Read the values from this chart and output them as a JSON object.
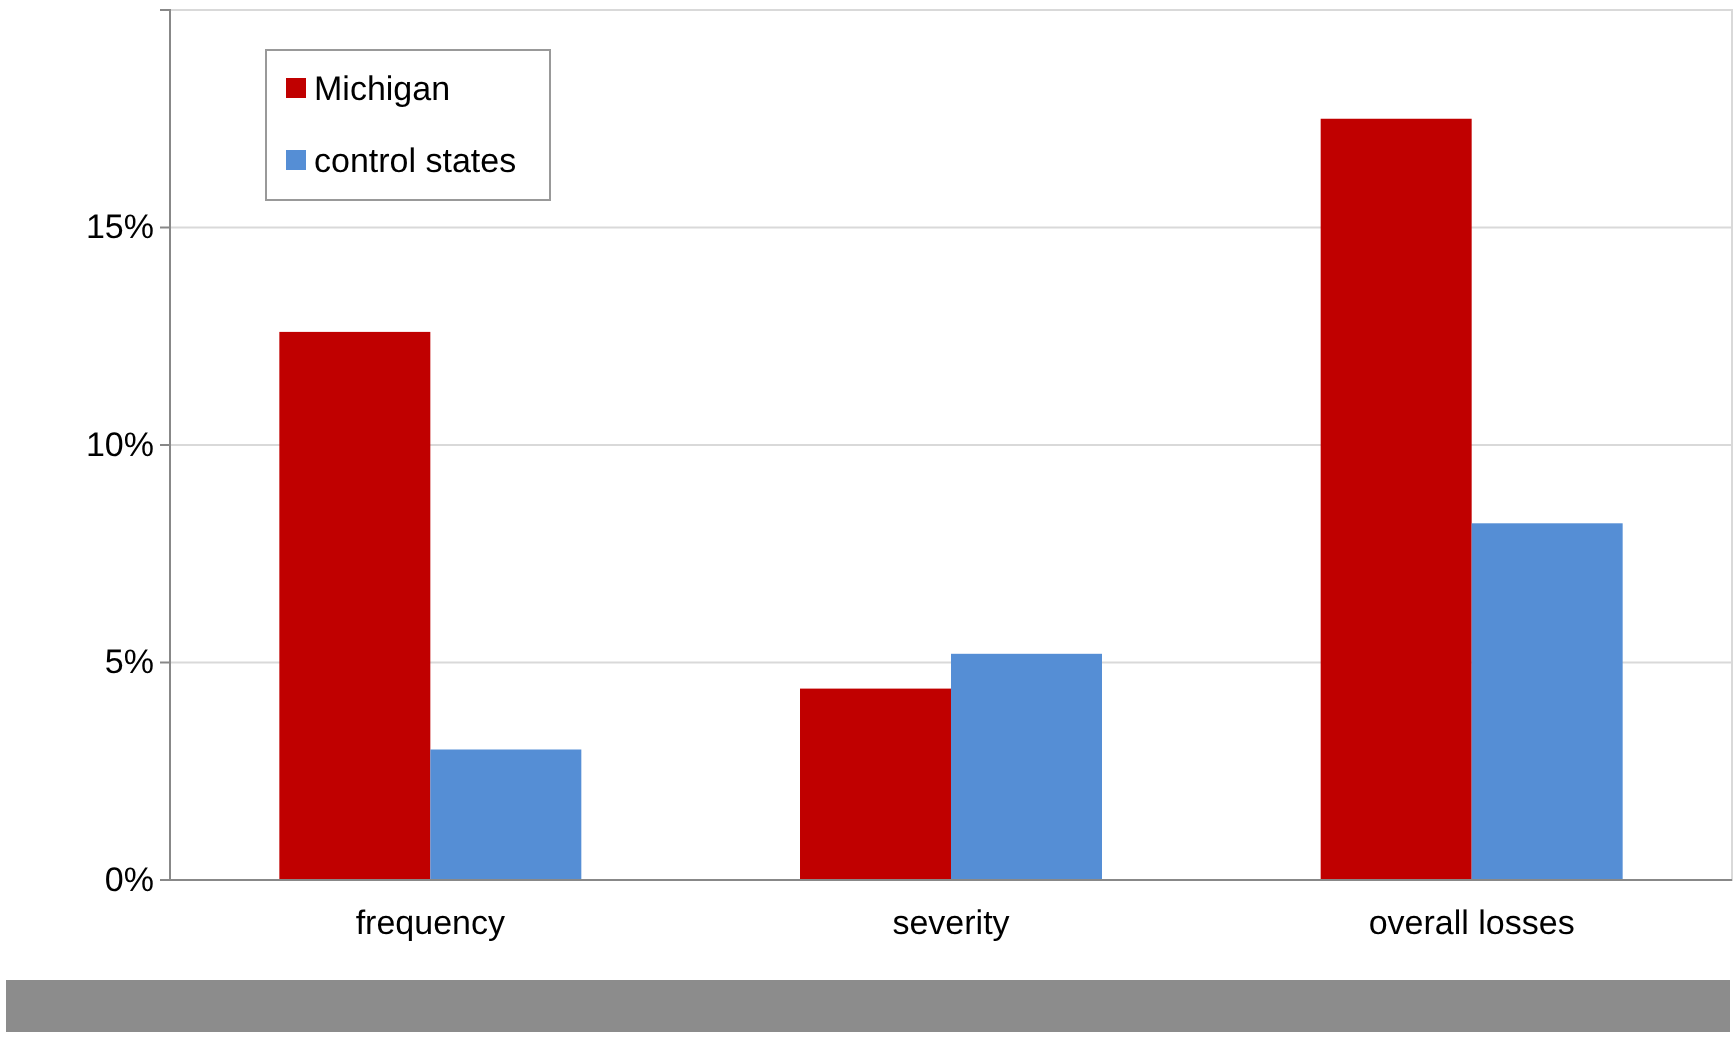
{
  "chart_data": {
    "type": "bar",
    "categories": [
      "frequency",
      "severity",
      "overall losses"
    ],
    "series": [
      {
        "name": "Michigan",
        "color": "#c00000",
        "values": [
          12.6,
          4.4,
          17.5
        ]
      },
      {
        "name": "control states",
        "color": "#558ed5",
        "values": [
          3.0,
          5.2,
          8.2
        ]
      }
    ],
    "ylim": [
      0,
      20
    ],
    "yticks": [
      {
        "value": 0,
        "label": "0%"
      },
      {
        "value": 5,
        "label": "5%"
      },
      {
        "value": 10,
        "label": "10%"
      },
      {
        "value": 15,
        "label": "15%"
      }
    ],
    "grid": "y",
    "legend": "top left"
  }
}
